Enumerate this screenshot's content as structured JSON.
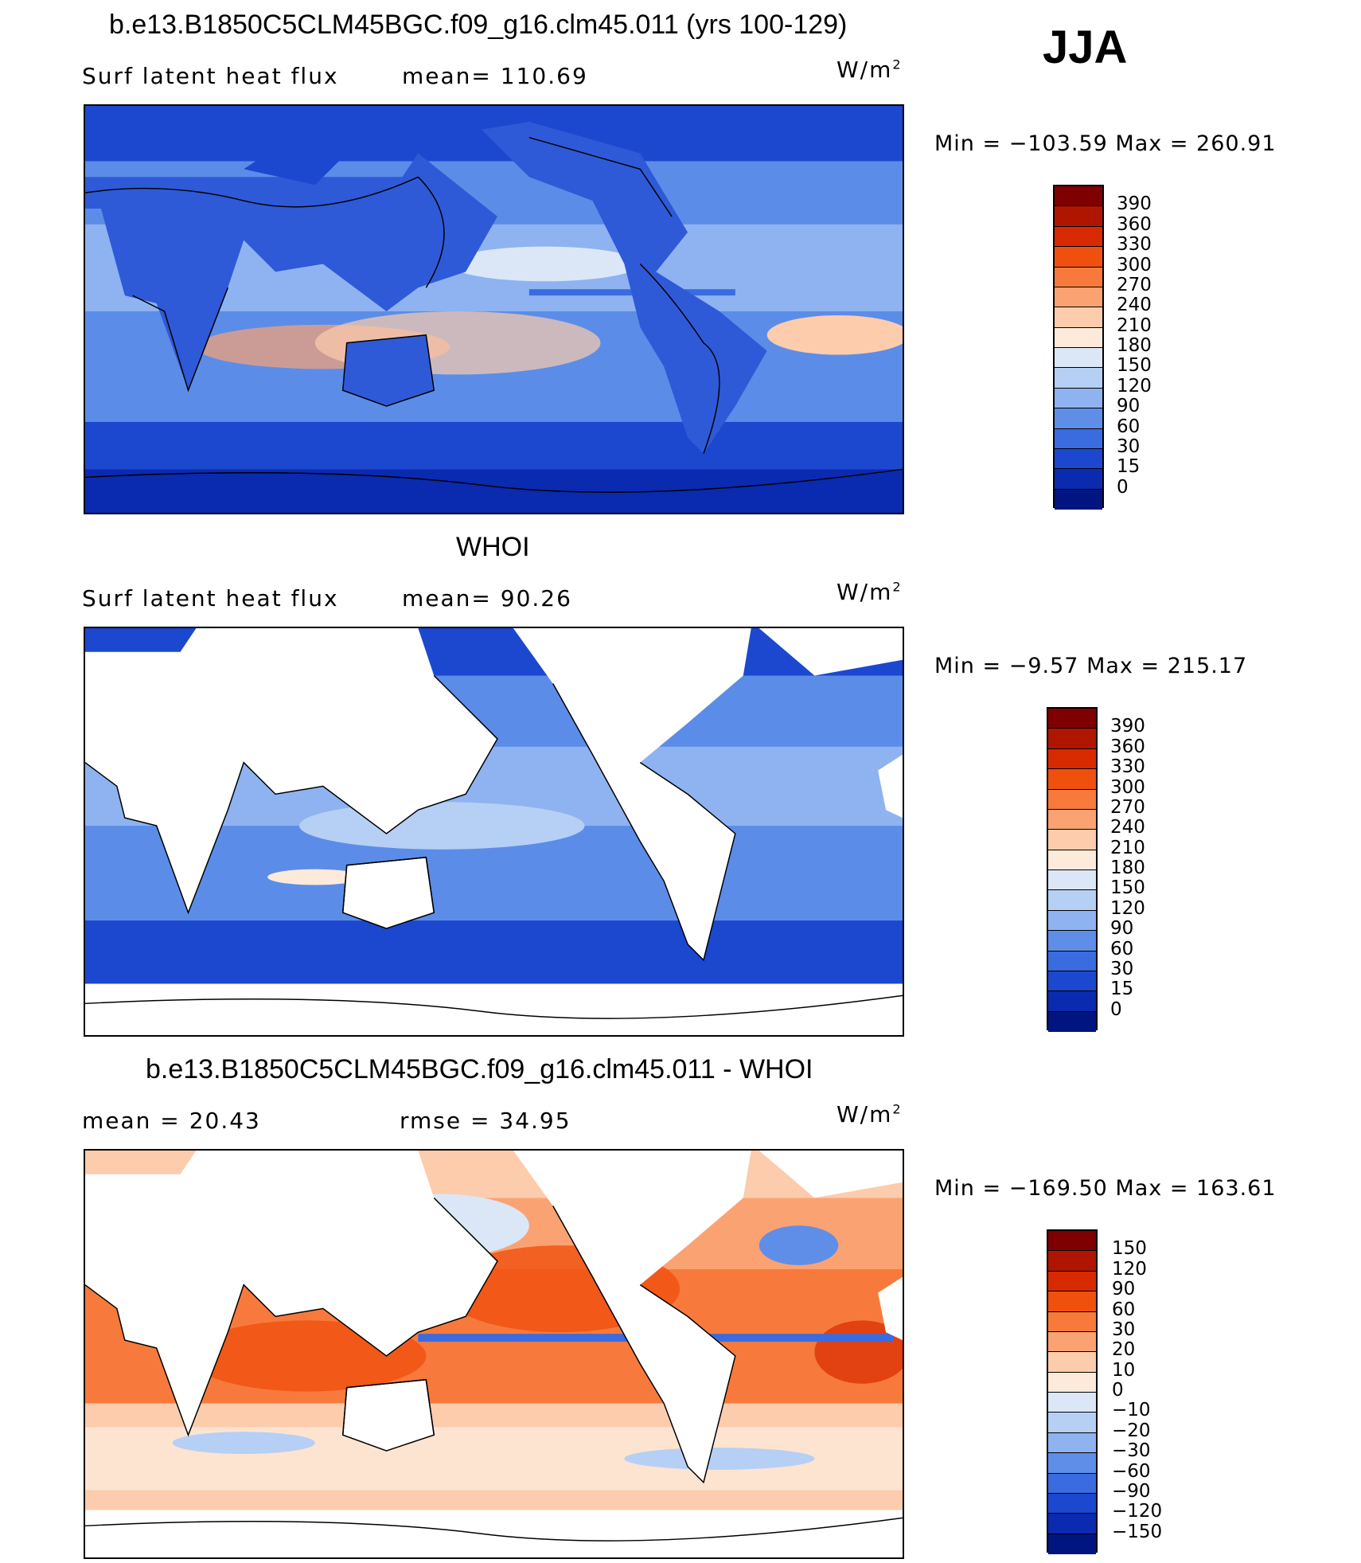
{
  "season": "JJA",
  "units": "W/m",
  "units_sup": "2",
  "panels": [
    {
      "title": "b.e13.B1850C5CLM45BGC.f09_g16.clm45.011 (yrs 100-129)",
      "left_label": "Surf  latent  heat  flux",
      "mean_label": "mean=",
      "mean_value": "110.69",
      "min_label": "Min  =",
      "min_value": "−103.59",
      "max_label": "Max  =",
      "max_value": "260.91",
      "colorbar": {
        "labels": [
          "390",
          "360",
          "330",
          "300",
          "270",
          "240",
          "210",
          "180",
          "150",
          "120",
          "90",
          "60",
          "30",
          "15",
          "0"
        ],
        "colors": [
          "#7f0000",
          "#b01500",
          "#d82a00",
          "#f0500e",
          "#f77a3c",
          "#fba273",
          "#fcccac",
          "#fdeadb",
          "#dbe7f7",
          "#b6cff4",
          "#8eb3f0",
          "#5f8ee9",
          "#3a6ce0",
          "#1b48cf",
          "#0a2ab0",
          "#001580"
        ]
      },
      "map": {
        "field": "model",
        "ocean_color": "#5b8de8",
        "land_color": "#2e5ad8"
      }
    },
    {
      "title": "WHOI",
      "left_label": "Surf  latent  heat  flux",
      "mean_label": "mean=",
      "mean_value": "90.26",
      "min_label": "Min  =",
      "min_value": "−9.57",
      "max_label": "Max  =",
      "max_value": "215.17",
      "colorbar": {
        "labels": [
          "390",
          "360",
          "330",
          "300",
          "270",
          "240",
          "210",
          "180",
          "150",
          "120",
          "90",
          "60",
          "30",
          "15",
          "0"
        ],
        "colors": [
          "#7f0000",
          "#b01500",
          "#d82a00",
          "#f0500e",
          "#f77a3c",
          "#fba273",
          "#fcccac",
          "#fdeadb",
          "#dbe7f7",
          "#b6cff4",
          "#8eb3f0",
          "#5f8ee9",
          "#3a6ce0",
          "#1b48cf",
          "#0a2ab0",
          "#001580"
        ]
      },
      "map": {
        "field": "obs",
        "ocean_color": "#5b8de8",
        "land_color": "#ffffff"
      }
    },
    {
      "title": "b.e13.B1850C5CLM45BGC.f09_g16.clm45.011 - WHOI",
      "left_label": "mean  =",
      "mean_label": "",
      "mean_value": "20.43",
      "rmse_label": "rmse  =",
      "rmse_value": "34.95",
      "min_label": "Min  =",
      "min_value": "−169.50",
      "max_label": "Max  =",
      "max_value": "163.61",
      "colorbar": {
        "labels": [
          "150",
          "120",
          "90",
          "60",
          "30",
          "20",
          "10",
          "0",
          "−10",
          "−20",
          "−30",
          "−60",
          "−90",
          "−120",
          "−150"
        ],
        "colors": [
          "#7f0000",
          "#b01500",
          "#d82a00",
          "#f0500e",
          "#f77a3c",
          "#fba273",
          "#fcccac",
          "#fdeadb",
          "#dbe7f7",
          "#b6cff4",
          "#8eb3f0",
          "#5f8ee9",
          "#3a6ce0",
          "#1b48cf",
          "#0a2ab0",
          "#001580"
        ]
      },
      "map": {
        "field": "difference",
        "ocean_color": "#f7854a",
        "land_color": "#ffffff"
      }
    }
  ]
}
